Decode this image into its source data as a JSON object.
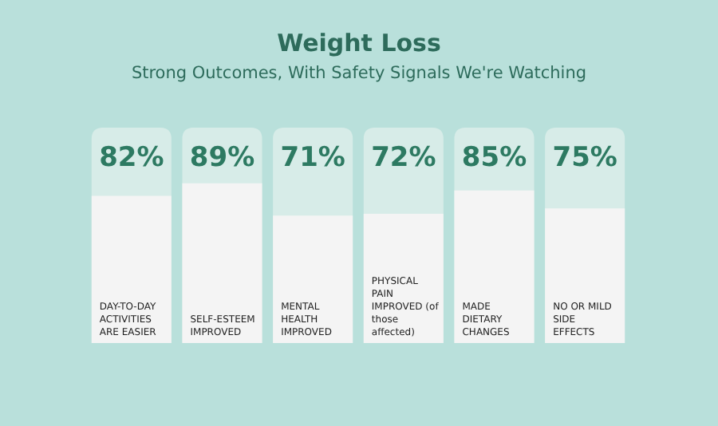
{
  "chart_data": {
    "type": "bar",
    "title": "Weight Loss",
    "subtitle": "Strong Outcomes, With Safety Signals We're Watching",
    "categories": [
      "DAY-TO-DAY ACTIVITIES ARE EASIER",
      "SELF-ESTEEM IMPROVED",
      "MENTAL HEALTH IMPROVED",
      "PHYSICAL PAIN IMPROVED (of those affected)",
      "MADE DIETARY CHANGES",
      "NO OR MILD SIDE EFFECTS"
    ],
    "values": [
      82,
      89,
      71,
      72,
      85,
      75
    ],
    "value_labels": [
      "82%",
      "89%",
      "71%",
      "72%",
      "85%",
      "75%"
    ],
    "color": "#f4f4f4",
    "ylim": [
      0,
      120
    ],
    "tick_labels": false,
    "legend": false
  }
}
